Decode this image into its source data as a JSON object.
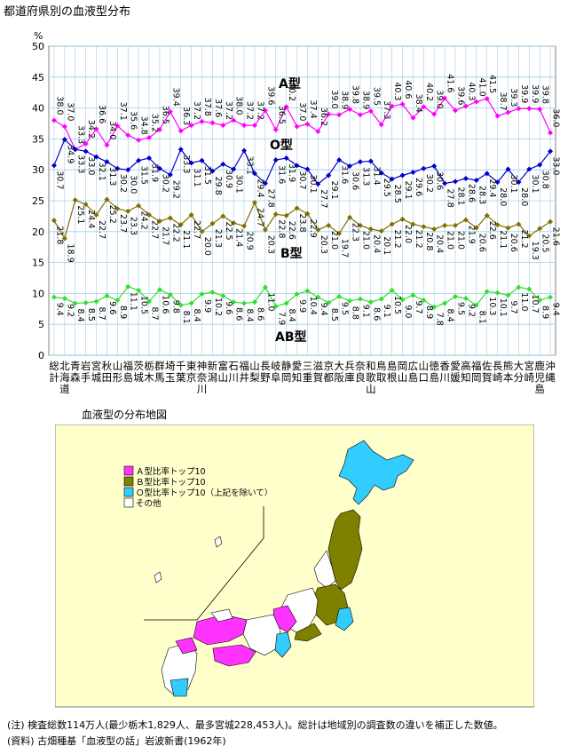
{
  "title": "都道府県別の血液型分布",
  "map_title": "血液型の分布地図",
  "notes": {
    "note1": "(注) 検査総数114万人(最少栃木1,829人、最多宮城228,453人)。総計は地域別の調査数の違いを補正した数値。",
    "note2": "(資料) 古畑種基「血液型の話」岩波新書(1962年)"
  },
  "colors": {
    "A": "#ff00ff",
    "O": "#0000cc",
    "B": "#807000",
    "AB": "#33dd33",
    "map_A": "#ff33ff",
    "map_B": "#808000",
    "map_O": "#33ccff",
    "map_bg": "#ffffcc",
    "plot_bg": "#ffffff",
    "grid": "#9fcfe8"
  },
  "map_legend": [
    {
      "label": "Ａ型比率トップ10",
      "color": "#ff33ff"
    },
    {
      "label": "Ｂ型比率トップ10",
      "color": "#808000"
    },
    {
      "label": "Ｏ型比率トップ10（上記を除いて）",
      "color": "#33ccff"
    },
    {
      "label": "その他",
      "color": "#ffffff"
    }
  ],
  "chart_data": {
    "type": "line",
    "ylabel": "%",
    "ylim": [
      0,
      50
    ],
    "yticks": [
      "0",
      "5",
      "10",
      "15",
      "20",
      "25",
      "30",
      "35",
      "40",
      "45",
      "50"
    ],
    "grid": true,
    "categories": [
      "総計",
      "北海道",
      "青森",
      "岩手",
      "宮城",
      "秋田",
      "山形",
      "福島",
      "茨城",
      "栃木",
      "群馬",
      "埼玉",
      "千葉",
      "東京",
      "神奈川",
      "新潟",
      "富山",
      "石川",
      "福井",
      "山梨",
      "長野",
      "岐阜",
      "静岡",
      "愛知",
      "三重",
      "滋賀",
      "京都",
      "大阪",
      "兵庫",
      "奈良",
      "和歌山",
      "鳥取",
      "島根",
      "岡山",
      "広島",
      "山口",
      "徳島",
      "香川",
      "愛媛",
      "高知",
      "福岡",
      "佐賀",
      "長崎",
      "熊本",
      "大分",
      "宮崎",
      "鹿児島",
      "沖縄"
    ],
    "series": [
      {
        "name": "A型",
        "values": [
          38.0,
          37.0,
          33.3,
          34.2,
          36.6,
          34.0,
          37.1,
          35.6,
          34.8,
          35.2,
          36.5,
          39.4,
          36.3,
          37.2,
          37.8,
          37.6,
          37.2,
          38.0,
          37.2,
          37.2,
          39.6,
          36.5,
          40.2,
          37.0,
          37.4,
          36.2,
          39.0,
          38.9,
          39.8,
          38.9,
          39.5,
          37.3,
          40.3,
          40.6,
          38.4,
          40.2,
          39.0,
          41.6,
          39.6,
          40.3,
          41.0,
          41.5,
          38.7,
          39.3,
          39.9,
          39.9,
          39.8,
          36.0
        ],
        "label_pos": "above"
      },
      {
        "name": "O型",
        "values": [
          30.7,
          34.9,
          33.3,
          33.0,
          32.1,
          31.3,
          30.2,
          30.0,
          31.5,
          31.9,
          30.2,
          29.2,
          33.3,
          31.1,
          31.5,
          29.8,
          30.9,
          30.1,
          33.1,
          29.4,
          27.8,
          31.6,
          31.9,
          30.7,
          30.1,
          27.7,
          29.1,
          31.6,
          30.6,
          31.3,
          31.4,
          29.5,
          28.5,
          29.1,
          29.6,
          30.2,
          30.6,
          27.8,
          28.1,
          28.6,
          28.3,
          29.4,
          28.0,
          30.1,
          28.0,
          30.1,
          30.8,
          33.0
        ],
        "label_pos": "below"
      },
      {
        "name": "B型",
        "values": [
          21.8,
          18.9,
          25.1,
          24.4,
          22.7,
          25.2,
          23.7,
          23.3,
          24.2,
          22.7,
          21.7,
          22.2,
          21.1,
          22.7,
          20.0,
          21.3,
          22.5,
          21.4,
          20.9,
          24.7,
          20.3,
          22.8,
          22.6,
          23.8,
          22.9,
          20.3,
          21.0,
          19.7,
          22.3,
          21.0,
          20.4,
          20.1,
          21.2,
          22.0,
          21.2,
          20.8,
          20.4,
          21.0,
          21.0,
          21.9,
          20.6,
          22.6,
          21.1,
          20.6,
          21.2,
          19.3,
          20.5,
          21.6
        ],
        "label_pos": "below"
      },
      {
        "name": "AB型",
        "values": [
          9.4,
          9.2,
          8.4,
          8.5,
          8.7,
          9.6,
          8.9,
          11.1,
          10.5,
          8.7,
          10.6,
          9.8,
          8.1,
          8.4,
          9.9,
          10.2,
          9.6,
          8.6,
          8.4,
          8.6,
          11.0,
          7.9,
          8.4,
          9.9,
          10.4,
          9.4,
          8.5,
          9.5,
          8.8,
          9.1,
          8.6,
          9.1,
          10.5,
          9.0,
          9.7,
          8.9,
          7.8,
          8.4,
          9.5,
          9.2,
          8.1,
          10.3,
          10.1,
          9.7,
          11.0,
          10.7,
          8.9,
          9.4
        ],
        "label_pos": "below"
      }
    ],
    "series_labels": {
      "A": "A型",
      "O": "O型",
      "B": "B型",
      "AB": "AB型"
    }
  }
}
